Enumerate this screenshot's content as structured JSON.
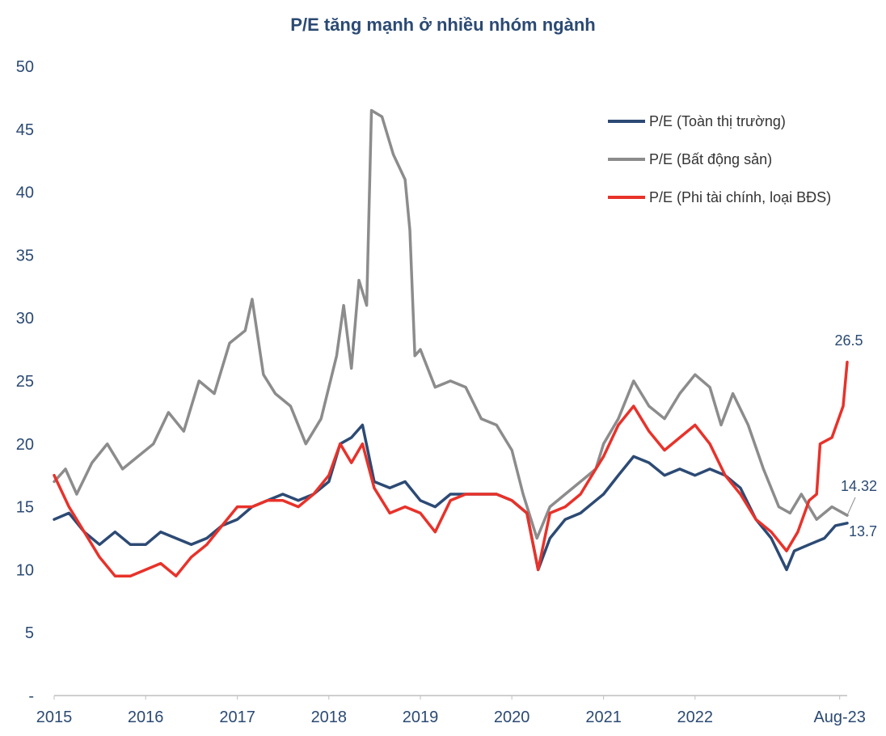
{
  "chart_data": {
    "type": "line",
    "title": "P/E tăng mạnh ở nhiều nhóm ngành",
    "xlabel": "",
    "ylabel": "",
    "ylim": [
      0,
      50
    ],
    "yticks": [
      "-",
      "5",
      "10",
      "15",
      "20",
      "25",
      "30",
      "35",
      "40",
      "45",
      "50"
    ],
    "xlim": [
      "2015-01-01",
      "2023-08-31"
    ],
    "xticks": [
      {
        "label": "2015",
        "x": "2015-01-01"
      },
      {
        "label": "2016",
        "x": "2016-01-01"
      },
      {
        "label": "2017",
        "x": "2017-01-01"
      },
      {
        "label": "2018",
        "x": "2018-01-01"
      },
      {
        "label": "2019",
        "x": "2019-01-01"
      },
      {
        "label": "2020",
        "x": "2020-01-01"
      },
      {
        "label": "2021",
        "x": "2021-01-01"
      },
      {
        "label": "2022",
        "x": "2022-01-01"
      },
      {
        "label": "Aug-23",
        "x": "2023-08-01"
      }
    ],
    "grid": false,
    "legend_position": "top-right",
    "series": [
      {
        "name": "P/E (Toàn thị trường)",
        "color": "#2c4a74",
        "end_label": "13.7",
        "points": [
          [
            "2015-01-01",
            14.0
          ],
          [
            "2015-03-01",
            14.5
          ],
          [
            "2015-05-01",
            13.0
          ],
          [
            "2015-07-01",
            12.0
          ],
          [
            "2015-09-01",
            13.0
          ],
          [
            "2015-11-01",
            12.0
          ],
          [
            "2016-01-01",
            12.0
          ],
          [
            "2016-03-01",
            13.0
          ],
          [
            "2016-05-01",
            12.5
          ],
          [
            "2016-07-01",
            12.0
          ],
          [
            "2016-09-01",
            12.5
          ],
          [
            "2016-11-01",
            13.5
          ],
          [
            "2017-01-01",
            14.0
          ],
          [
            "2017-03-01",
            15.0
          ],
          [
            "2017-05-01",
            15.5
          ],
          [
            "2017-07-01",
            16.0
          ],
          [
            "2017-09-01",
            15.5
          ],
          [
            "2017-11-01",
            16.0
          ],
          [
            "2018-01-01",
            17.0
          ],
          [
            "2018-02-15",
            20.0
          ],
          [
            "2018-04-01",
            20.5
          ],
          [
            "2018-05-15",
            21.5
          ],
          [
            "2018-07-01",
            17.0
          ],
          [
            "2018-09-01",
            16.5
          ],
          [
            "2018-11-01",
            17.0
          ],
          [
            "2019-01-01",
            15.5
          ],
          [
            "2019-03-01",
            15.0
          ],
          [
            "2019-05-01",
            16.0
          ],
          [
            "2019-07-01",
            16.0
          ],
          [
            "2019-09-01",
            16.0
          ],
          [
            "2019-11-01",
            16.0
          ],
          [
            "2020-01-01",
            15.5
          ],
          [
            "2020-03-01",
            14.5
          ],
          [
            "2020-04-15",
            10.0
          ],
          [
            "2020-06-01",
            12.5
          ],
          [
            "2020-08-01",
            14.0
          ],
          [
            "2020-10-01",
            14.5
          ],
          [
            "2020-12-01",
            15.5
          ],
          [
            "2021-01-01",
            16.0
          ],
          [
            "2021-03-01",
            17.5
          ],
          [
            "2021-05-01",
            19.0
          ],
          [
            "2021-07-01",
            18.5
          ],
          [
            "2021-09-01",
            17.5
          ],
          [
            "2021-11-01",
            18.0
          ],
          [
            "2022-01-01",
            17.5
          ],
          [
            "2022-03-01",
            18.0
          ],
          [
            "2022-05-01",
            17.5
          ],
          [
            "2022-07-01",
            16.5
          ],
          [
            "2022-09-01",
            14.0
          ],
          [
            "2022-11-01",
            12.5
          ],
          [
            "2023-01-01",
            10.0
          ],
          [
            "2023-02-01",
            11.5
          ],
          [
            "2023-04-01",
            12.0
          ],
          [
            "2023-06-01",
            12.5
          ],
          [
            "2023-07-15",
            13.5
          ],
          [
            "2023-08-31",
            13.7
          ]
        ]
      },
      {
        "name": "P/E (Bất động sản)",
        "color": "#8c8c8c",
        "end_label": "14.32",
        "points": [
          [
            "2015-01-01",
            17.0
          ],
          [
            "2015-02-15",
            18.0
          ],
          [
            "2015-04-01",
            16.0
          ],
          [
            "2015-06-01",
            18.5
          ],
          [
            "2015-08-01",
            20.0
          ],
          [
            "2015-10-01",
            18.0
          ],
          [
            "2015-12-01",
            19.0
          ],
          [
            "2016-02-01",
            20.0
          ],
          [
            "2016-04-01",
            22.5
          ],
          [
            "2016-06-01",
            21.0
          ],
          [
            "2016-08-01",
            25.0
          ],
          [
            "2016-10-01",
            24.0
          ],
          [
            "2016-12-01",
            28.0
          ],
          [
            "2017-02-01",
            29.0
          ],
          [
            "2017-03-01",
            31.5
          ],
          [
            "2017-04-15",
            25.5
          ],
          [
            "2017-06-01",
            24.0
          ],
          [
            "2017-08-01",
            23.0
          ],
          [
            "2017-10-01",
            20.0
          ],
          [
            "2017-12-01",
            22.0
          ],
          [
            "2018-02-01",
            27.0
          ],
          [
            "2018-03-01",
            31.0
          ],
          [
            "2018-04-01",
            26.0
          ],
          [
            "2018-05-01",
            33.0
          ],
          [
            "2018-06-01",
            31.0
          ],
          [
            "2018-06-20",
            46.5
          ],
          [
            "2018-08-01",
            46.0
          ],
          [
            "2018-09-15",
            43.0
          ],
          [
            "2018-11-01",
            41.0
          ],
          [
            "2018-11-20",
            37.0
          ],
          [
            "2018-12-10",
            27.0
          ],
          [
            "2019-01-01",
            27.5
          ],
          [
            "2019-03-01",
            24.5
          ],
          [
            "2019-05-01",
            25.0
          ],
          [
            "2019-07-01",
            24.5
          ],
          [
            "2019-09-01",
            22.0
          ],
          [
            "2019-11-01",
            21.5
          ],
          [
            "2020-01-01",
            19.5
          ],
          [
            "2020-02-15",
            16.0
          ],
          [
            "2020-04-10",
            12.5
          ],
          [
            "2020-06-01",
            15.0
          ],
          [
            "2020-08-01",
            16.0
          ],
          [
            "2020-10-01",
            17.0
          ],
          [
            "2020-12-01",
            18.0
          ],
          [
            "2021-01-01",
            20.0
          ],
          [
            "2021-03-01",
            22.0
          ],
          [
            "2021-05-01",
            25.0
          ],
          [
            "2021-07-01",
            23.0
          ],
          [
            "2021-09-01",
            22.0
          ],
          [
            "2021-11-01",
            24.0
          ],
          [
            "2022-01-01",
            25.5
          ],
          [
            "2022-03-01",
            24.5
          ],
          [
            "2022-04-15",
            21.5
          ],
          [
            "2022-06-01",
            24.0
          ],
          [
            "2022-08-01",
            21.5
          ],
          [
            "2022-10-01",
            18.0
          ],
          [
            "2022-12-01",
            15.0
          ],
          [
            "2023-01-15",
            14.5
          ],
          [
            "2023-03-01",
            16.0
          ],
          [
            "2023-05-01",
            14.0
          ],
          [
            "2023-07-01",
            15.0
          ],
          [
            "2023-08-31",
            14.32
          ]
        ]
      },
      {
        "name": "P/E (Phi tài chính, loại BĐS)",
        "color": "#e8322a",
        "end_label": "26.5",
        "points": [
          [
            "2015-01-01",
            17.5
          ],
          [
            "2015-03-01",
            15.0
          ],
          [
            "2015-05-01",
            13.0
          ],
          [
            "2015-07-01",
            11.0
          ],
          [
            "2015-09-01",
            9.5
          ],
          [
            "2015-11-01",
            9.5
          ],
          [
            "2016-01-01",
            10.0
          ],
          [
            "2016-03-01",
            10.5
          ],
          [
            "2016-05-01",
            9.5
          ],
          [
            "2016-07-01",
            11.0
          ],
          [
            "2016-09-01",
            12.0
          ],
          [
            "2016-11-01",
            13.5
          ],
          [
            "2017-01-01",
            15.0
          ],
          [
            "2017-03-01",
            15.0
          ],
          [
            "2017-05-01",
            15.5
          ],
          [
            "2017-07-01",
            15.5
          ],
          [
            "2017-09-01",
            15.0
          ],
          [
            "2017-11-01",
            16.0
          ],
          [
            "2018-01-01",
            17.5
          ],
          [
            "2018-02-15",
            20.0
          ],
          [
            "2018-04-01",
            18.5
          ],
          [
            "2018-05-15",
            20.0
          ],
          [
            "2018-07-01",
            16.5
          ],
          [
            "2018-09-01",
            14.5
          ],
          [
            "2018-11-01",
            15.0
          ],
          [
            "2019-01-01",
            14.5
          ],
          [
            "2019-03-01",
            13.0
          ],
          [
            "2019-05-01",
            15.5
          ],
          [
            "2019-07-01",
            16.0
          ],
          [
            "2019-09-01",
            16.0
          ],
          [
            "2019-11-01",
            16.0
          ],
          [
            "2020-01-01",
            15.5
          ],
          [
            "2020-03-01",
            14.5
          ],
          [
            "2020-04-15",
            10.0
          ],
          [
            "2020-06-01",
            14.5
          ],
          [
            "2020-08-01",
            15.0
          ],
          [
            "2020-10-01",
            16.0
          ],
          [
            "2020-12-01",
            18.0
          ],
          [
            "2021-01-01",
            19.0
          ],
          [
            "2021-03-01",
            21.5
          ],
          [
            "2021-05-01",
            23.0
          ],
          [
            "2021-07-01",
            21.0
          ],
          [
            "2021-09-01",
            19.5
          ],
          [
            "2021-11-01",
            20.5
          ],
          [
            "2022-01-01",
            21.5
          ],
          [
            "2022-03-01",
            20.0
          ],
          [
            "2022-05-01",
            17.5
          ],
          [
            "2022-07-01",
            16.0
          ],
          [
            "2022-09-01",
            14.0
          ],
          [
            "2022-11-01",
            13.0
          ],
          [
            "2023-01-01",
            11.5
          ],
          [
            "2023-02-15",
            13.0
          ],
          [
            "2023-04-01",
            15.5
          ],
          [
            "2023-05-01",
            16.0
          ],
          [
            "2023-05-15",
            20.0
          ],
          [
            "2023-07-01",
            20.5
          ],
          [
            "2023-08-15",
            23.0
          ],
          [
            "2023-08-31",
            26.5
          ]
        ]
      }
    ]
  }
}
